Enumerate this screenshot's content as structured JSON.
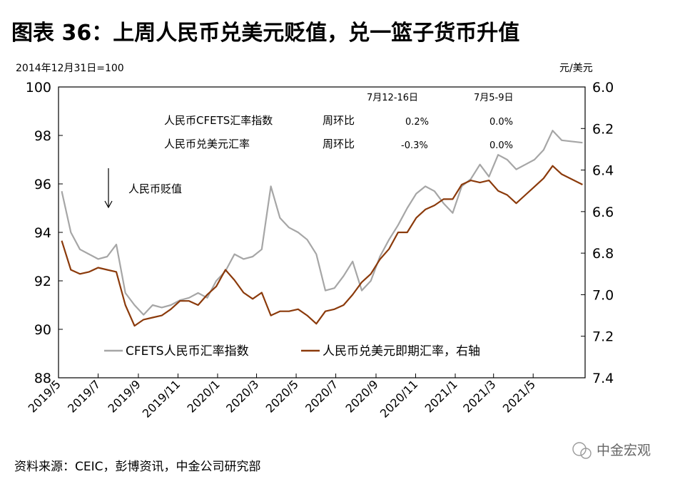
{
  "title": "图表 36：上周人民币兑美元贬值，兑一篮子货币升值",
  "source": "资料来源：CEIC，彭博资讯，中金公司研究部",
  "watermark": "中金宏观",
  "chart_data": {
    "type": "line",
    "left_axis": {
      "unit_label": "2014年12月31日=100",
      "ylim": [
        88,
        100
      ],
      "ticks": [
        "100",
        "98",
        "96",
        "94",
        "92",
        "90",
        "88"
      ]
    },
    "right_axis": {
      "unit_label": "元/美元",
      "ylim": [
        7.4,
        6.0
      ],
      "inverted": true,
      "ticks": [
        "6.0",
        "6.2",
        "6.4",
        "6.6",
        "6.8",
        "7.0",
        "7.2",
        "7.4"
      ]
    },
    "x_ticks": [
      "2019/5",
      "2019/7",
      "2019/9",
      "2019/11",
      "2020/1",
      "2020/3",
      "2020/5",
      "2020/7",
      "2020/9",
      "2020/11",
      "2021/1",
      "2021/3",
      "2021/5"
    ],
    "grid": false,
    "annotation_arrow": "人民币贬值",
    "table": {
      "headers": [
        "7月12-16日",
        "7月5-9日"
      ],
      "rows": [
        {
          "name": "人民币CFETS汇率指数",
          "metric": "周环比",
          "values": [
            "0.2%",
            "0.0%"
          ]
        },
        {
          "name": "人民币兑美元汇率",
          "metric": "周环比",
          "values": [
            "-0.3%",
            "0.0%"
          ]
        }
      ]
    },
    "series": [
      {
        "name": "CFETS人民币汇率指数",
        "axis": "left",
        "color": "#a6a6a6",
        "points": [
          [
            "2019-05-06",
            95.7
          ],
          [
            "2019-05-20",
            94.0
          ],
          [
            "2019-06-03",
            93.3
          ],
          [
            "2019-06-17",
            93.1
          ],
          [
            "2019-07-01",
            92.9
          ],
          [
            "2019-07-15",
            93.0
          ],
          [
            "2019-07-29",
            93.5
          ],
          [
            "2019-08-12",
            91.5
          ],
          [
            "2019-08-26",
            91.0
          ],
          [
            "2019-09-09",
            90.6
          ],
          [
            "2019-09-23",
            91.0
          ],
          [
            "2019-10-07",
            90.9
          ],
          [
            "2019-10-21",
            91.0
          ],
          [
            "2019-11-04",
            91.2
          ],
          [
            "2019-11-18",
            91.3
          ],
          [
            "2019-12-02",
            91.5
          ],
          [
            "2019-12-16",
            91.3
          ],
          [
            "2019-12-30",
            92.0
          ],
          [
            "2020-01-13",
            92.4
          ],
          [
            "2020-01-27",
            93.1
          ],
          [
            "2020-02-10",
            92.9
          ],
          [
            "2020-02-24",
            93.0
          ],
          [
            "2020-03-09",
            93.3
          ],
          [
            "2020-03-23",
            95.9
          ],
          [
            "2020-04-06",
            94.6
          ],
          [
            "2020-04-20",
            94.2
          ],
          [
            "2020-05-04",
            94.0
          ],
          [
            "2020-05-18",
            93.7
          ],
          [
            "2020-06-01",
            93.1
          ],
          [
            "2020-06-15",
            91.6
          ],
          [
            "2020-06-29",
            91.7
          ],
          [
            "2020-07-13",
            92.2
          ],
          [
            "2020-07-27",
            92.8
          ],
          [
            "2020-08-10",
            91.6
          ],
          [
            "2020-08-24",
            92.0
          ],
          [
            "2020-09-07",
            93.0
          ],
          [
            "2020-09-21",
            93.7
          ],
          [
            "2020-10-05",
            94.3
          ],
          [
            "2020-10-19",
            95.0
          ],
          [
            "2020-11-02",
            95.6
          ],
          [
            "2020-11-16",
            95.9
          ],
          [
            "2020-11-30",
            95.7
          ],
          [
            "2020-12-14",
            95.2
          ],
          [
            "2020-12-28",
            94.8
          ],
          [
            "2021-01-11",
            95.9
          ],
          [
            "2021-01-25",
            96.2
          ],
          [
            "2021-02-08",
            96.8
          ],
          [
            "2021-02-22",
            96.3
          ],
          [
            "2021-03-08",
            97.2
          ],
          [
            "2021-03-22",
            97.0
          ],
          [
            "2021-04-05",
            96.6
          ],
          [
            "2021-04-19",
            96.8
          ],
          [
            "2021-05-03",
            97.0
          ],
          [
            "2021-05-17",
            97.4
          ],
          [
            "2021-05-31",
            98.2
          ],
          [
            "2021-06-14",
            97.8
          ],
          [
            "2021-07-16",
            97.7
          ]
        ]
      },
      {
        "name": "人民币兑美元即期汇率，右轴",
        "axis": "right",
        "color": "#8b3a0b",
        "points": [
          [
            "2019-05-06",
            6.74
          ],
          [
            "2019-05-20",
            6.88
          ],
          [
            "2019-06-03",
            6.9
          ],
          [
            "2019-06-17",
            6.89
          ],
          [
            "2019-07-01",
            6.87
          ],
          [
            "2019-07-15",
            6.88
          ],
          [
            "2019-07-29",
            6.89
          ],
          [
            "2019-08-12",
            7.05
          ],
          [
            "2019-08-26",
            7.15
          ],
          [
            "2019-09-09",
            7.12
          ],
          [
            "2019-09-23",
            7.11
          ],
          [
            "2019-10-07",
            7.1
          ],
          [
            "2019-10-21",
            7.07
          ],
          [
            "2019-11-04",
            7.03
          ],
          [
            "2019-11-18",
            7.03
          ],
          [
            "2019-12-02",
            7.05
          ],
          [
            "2019-12-16",
            7.0
          ],
          [
            "2019-12-30",
            6.96
          ],
          [
            "2020-01-13",
            6.88
          ],
          [
            "2020-01-27",
            6.93
          ],
          [
            "2020-02-10",
            6.99
          ],
          [
            "2020-02-24",
            7.02
          ],
          [
            "2020-03-09",
            6.99
          ],
          [
            "2020-03-23",
            7.1
          ],
          [
            "2020-04-06",
            7.08
          ],
          [
            "2020-04-20",
            7.08
          ],
          [
            "2020-05-04",
            7.07
          ],
          [
            "2020-05-18",
            7.1
          ],
          [
            "2020-06-01",
            7.14
          ],
          [
            "2020-06-15",
            7.08
          ],
          [
            "2020-06-29",
            7.07
          ],
          [
            "2020-07-13",
            7.05
          ],
          [
            "2020-07-27",
            7.0
          ],
          [
            "2020-08-10",
            6.94
          ],
          [
            "2020-08-24",
            6.9
          ],
          [
            "2020-09-07",
            6.83
          ],
          [
            "2020-09-21",
            6.78
          ],
          [
            "2020-10-05",
            6.7
          ],
          [
            "2020-10-19",
            6.7
          ],
          [
            "2020-11-02",
            6.63
          ],
          [
            "2020-11-16",
            6.59
          ],
          [
            "2020-11-30",
            6.57
          ],
          [
            "2020-12-14",
            6.54
          ],
          [
            "2020-12-28",
            6.54
          ],
          [
            "2021-01-11",
            6.47
          ],
          [
            "2021-01-25",
            6.45
          ],
          [
            "2021-02-08",
            6.46
          ],
          [
            "2021-02-22",
            6.45
          ],
          [
            "2021-03-08",
            6.5
          ],
          [
            "2021-03-22",
            6.52
          ],
          [
            "2021-04-05",
            6.56
          ],
          [
            "2021-04-19",
            6.52
          ],
          [
            "2021-05-03",
            6.48
          ],
          [
            "2021-05-17",
            6.44
          ],
          [
            "2021-05-31",
            6.38
          ],
          [
            "2021-06-14",
            6.42
          ],
          [
            "2021-07-16",
            6.47
          ]
        ]
      }
    ]
  }
}
